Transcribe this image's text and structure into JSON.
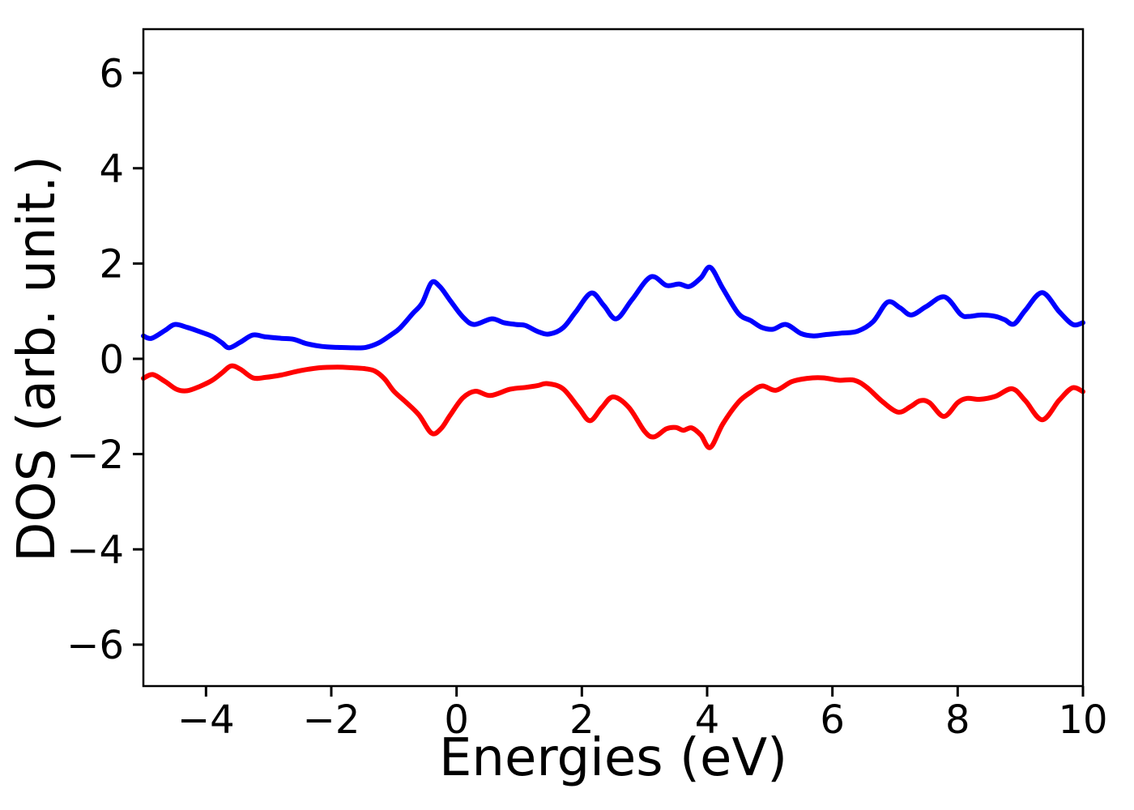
{
  "figure": {
    "background": "#ffffff",
    "axis_color": "#000000"
  },
  "chart_data": {
    "type": "line",
    "title": "",
    "xlabel": "Energies (eV)",
    "ylabel": "DOS (arb. unit.)",
    "xlim": [
      -5,
      10
    ],
    "ylim": [
      -6.87,
      6.92
    ],
    "grid": false,
    "legend": "none",
    "x_ticks": [
      -4,
      -2,
      0,
      2,
      4,
      6,
      8,
      10
    ],
    "x_tick_labels": [
      "−4",
      "−2",
      "0",
      "2",
      "4",
      "6",
      "8",
      "10"
    ],
    "y_ticks": [
      6,
      4,
      2,
      0,
      -2,
      -4,
      -6
    ],
    "y_tick_labels": [
      "6",
      "4",
      "2",
      "0",
      "−2",
      "−4",
      "−6"
    ],
    "series": [
      {
        "name": "blue-curve",
        "color": "#0000ff",
        "line_width": 6,
        "points": [
          [
            -5.0,
            0.48
          ],
          [
            -4.87,
            0.43
          ],
          [
            -4.65,
            0.6
          ],
          [
            -4.5,
            0.72
          ],
          [
            -4.3,
            0.66
          ],
          [
            -4.1,
            0.57
          ],
          [
            -3.9,
            0.47
          ],
          [
            -3.75,
            0.34
          ],
          [
            -3.63,
            0.23
          ],
          [
            -3.45,
            0.35
          ],
          [
            -3.25,
            0.5
          ],
          [
            -3.05,
            0.46
          ],
          [
            -2.8,
            0.43
          ],
          [
            -2.6,
            0.41
          ],
          [
            -2.4,
            0.32
          ],
          [
            -2.15,
            0.26
          ],
          [
            -1.9,
            0.24
          ],
          [
            -1.65,
            0.23
          ],
          [
            -1.45,
            0.24
          ],
          [
            -1.25,
            0.33
          ],
          [
            -1.05,
            0.5
          ],
          [
            -0.9,
            0.65
          ],
          [
            -0.7,
            0.95
          ],
          [
            -0.55,
            1.17
          ],
          [
            -0.4,
            1.6
          ],
          [
            -0.27,
            1.52
          ],
          [
            -0.1,
            1.22
          ],
          [
            0.1,
            0.88
          ],
          [
            0.28,
            0.72
          ],
          [
            0.56,
            0.84
          ],
          [
            0.75,
            0.76
          ],
          [
            0.95,
            0.72
          ],
          [
            1.1,
            0.7
          ],
          [
            1.3,
            0.57
          ],
          [
            1.48,
            0.52
          ],
          [
            1.7,
            0.65
          ],
          [
            1.9,
            0.98
          ],
          [
            2.15,
            1.38
          ],
          [
            2.35,
            1.12
          ],
          [
            2.55,
            0.84
          ],
          [
            2.8,
            1.24
          ],
          [
            3.1,
            1.72
          ],
          [
            3.35,
            1.54
          ],
          [
            3.55,
            1.57
          ],
          [
            3.72,
            1.52
          ],
          [
            3.9,
            1.7
          ],
          [
            4.05,
            1.92
          ],
          [
            4.25,
            1.48
          ],
          [
            4.5,
            0.95
          ],
          [
            4.7,
            0.8
          ],
          [
            4.87,
            0.66
          ],
          [
            5.05,
            0.62
          ],
          [
            5.26,
            0.72
          ],
          [
            5.5,
            0.53
          ],
          [
            5.7,
            0.48
          ],
          [
            5.9,
            0.51
          ],
          [
            6.15,
            0.54
          ],
          [
            6.4,
            0.58
          ],
          [
            6.65,
            0.78
          ],
          [
            6.88,
            1.19
          ],
          [
            7.08,
            1.07
          ],
          [
            7.26,
            0.92
          ],
          [
            7.5,
            1.1
          ],
          [
            7.79,
            1.3
          ],
          [
            8.05,
            0.93
          ],
          [
            8.18,
            0.89
          ],
          [
            8.38,
            0.92
          ],
          [
            8.6,
            0.89
          ],
          [
            8.75,
            0.82
          ],
          [
            8.9,
            0.73
          ],
          [
            9.08,
            1.02
          ],
          [
            9.35,
            1.39
          ],
          [
            9.62,
            0.99
          ],
          [
            9.84,
            0.72
          ],
          [
            10.0,
            0.76
          ]
        ]
      },
      {
        "name": "red-curve",
        "color": "#ff0000",
        "line_width": 6,
        "points": [
          [
            -5.0,
            -0.41
          ],
          [
            -4.85,
            -0.33
          ],
          [
            -4.65,
            -0.48
          ],
          [
            -4.47,
            -0.64
          ],
          [
            -4.3,
            -0.67
          ],
          [
            -4.1,
            -0.58
          ],
          [
            -3.9,
            -0.45
          ],
          [
            -3.75,
            -0.3
          ],
          [
            -3.6,
            -0.15
          ],
          [
            -3.45,
            -0.22
          ],
          [
            -3.25,
            -0.4
          ],
          [
            -3.05,
            -0.39
          ],
          [
            -2.8,
            -0.34
          ],
          [
            -2.5,
            -0.25
          ],
          [
            -2.2,
            -0.19
          ],
          [
            -1.9,
            -0.175
          ],
          [
            -1.65,
            -0.19
          ],
          [
            -1.45,
            -0.21
          ],
          [
            -1.3,
            -0.26
          ],
          [
            -1.15,
            -0.42
          ],
          [
            -1.0,
            -0.68
          ],
          [
            -0.8,
            -0.92
          ],
          [
            -0.6,
            -1.18
          ],
          [
            -0.4,
            -1.56
          ],
          [
            -0.25,
            -1.47
          ],
          [
            -0.1,
            -1.18
          ],
          [
            0.1,
            -0.82
          ],
          [
            0.3,
            -0.68
          ],
          [
            0.54,
            -0.77
          ],
          [
            0.85,
            -0.64
          ],
          [
            1.1,
            -0.6
          ],
          [
            1.3,
            -0.56
          ],
          [
            1.45,
            -0.52
          ],
          [
            1.7,
            -0.63
          ],
          [
            1.95,
            -1.03
          ],
          [
            2.13,
            -1.3
          ],
          [
            2.32,
            -1.02
          ],
          [
            2.5,
            -0.8
          ],
          [
            2.75,
            -1.02
          ],
          [
            3.0,
            -1.52
          ],
          [
            3.15,
            -1.64
          ],
          [
            3.35,
            -1.47
          ],
          [
            3.5,
            -1.44
          ],
          [
            3.62,
            -1.5
          ],
          [
            3.75,
            -1.45
          ],
          [
            3.9,
            -1.6
          ],
          [
            4.05,
            -1.86
          ],
          [
            4.25,
            -1.37
          ],
          [
            4.5,
            -0.91
          ],
          [
            4.7,
            -0.7
          ],
          [
            4.88,
            -0.57
          ],
          [
            5.1,
            -0.66
          ],
          [
            5.35,
            -0.48
          ],
          [
            5.6,
            -0.41
          ],
          [
            5.85,
            -0.4
          ],
          [
            6.1,
            -0.45
          ],
          [
            6.35,
            -0.45
          ],
          [
            6.55,
            -0.6
          ],
          [
            6.8,
            -0.9
          ],
          [
            7.05,
            -1.12
          ],
          [
            7.25,
            -1.0
          ],
          [
            7.4,
            -0.88
          ],
          [
            7.55,
            -0.92
          ],
          [
            7.78,
            -1.21
          ],
          [
            8.0,
            -0.92
          ],
          [
            8.15,
            -0.83
          ],
          [
            8.35,
            -0.85
          ],
          [
            8.6,
            -0.79
          ],
          [
            8.87,
            -0.63
          ],
          [
            9.08,
            -0.88
          ],
          [
            9.35,
            -1.28
          ],
          [
            9.62,
            -0.87
          ],
          [
            9.83,
            -0.61
          ],
          [
            10.0,
            -0.69
          ]
        ]
      }
    ]
  }
}
